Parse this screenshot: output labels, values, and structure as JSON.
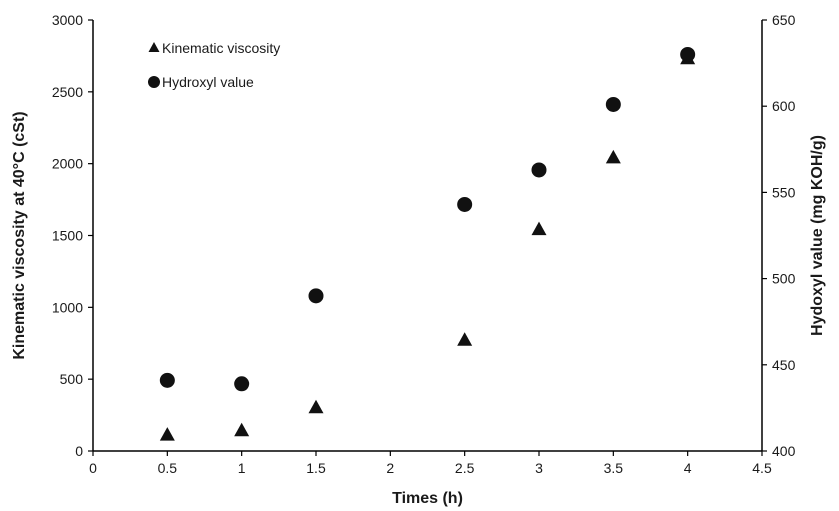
{
  "chart_data": {
    "type": "scatter",
    "title": "",
    "xlabel": "Times (h)",
    "ylabel_left": "Kinematic viscosity at 40°C (cSt)",
    "ylabel_right": "Hydoxyl value (mg KOH/g)",
    "xlim": [
      0,
      4.5
    ],
    "ylim_left": [
      0,
      3000
    ],
    "ylim_right": [
      400,
      650
    ],
    "x_ticks": [
      "0",
      "0.5",
      "1",
      "1.5",
      "2",
      "2.5",
      "3",
      "3.5",
      "4",
      "4.5"
    ],
    "y_left_ticks": [
      "0",
      "500",
      "1000",
      "1500",
      "2000",
      "2500",
      "3000"
    ],
    "y_right_ticks": [
      "400",
      "450",
      "500",
      "550",
      "600",
      "650"
    ],
    "grid": false,
    "legend_position": "top-left",
    "series": [
      {
        "name": "Kinematic viscosity",
        "marker": "triangle",
        "axis": "left",
        "color": "#111111",
        "points": [
          {
            "x": 0.5,
            "y": 110
          },
          {
            "x": 1,
            "y": 140
          },
          {
            "x": 1.5,
            "y": 300
          },
          {
            "x": 2.5,
            "y": 770
          },
          {
            "x": 3,
            "y": 1540
          },
          {
            "x": 3.5,
            "y": 2040
          },
          {
            "x": 4,
            "y": 2730
          }
        ]
      },
      {
        "name": "Hydroxyl value",
        "marker": "circle",
        "axis": "right",
        "color": "#111111",
        "points": [
          {
            "x": 0.5,
            "y": 441
          },
          {
            "x": 1,
            "y": 439
          },
          {
            "x": 1.5,
            "y": 490
          },
          {
            "x": 2.5,
            "y": 543
          },
          {
            "x": 3,
            "y": 563
          },
          {
            "x": 3.5,
            "y": 601
          },
          {
            "x": 4,
            "y": 630
          }
        ]
      }
    ]
  }
}
